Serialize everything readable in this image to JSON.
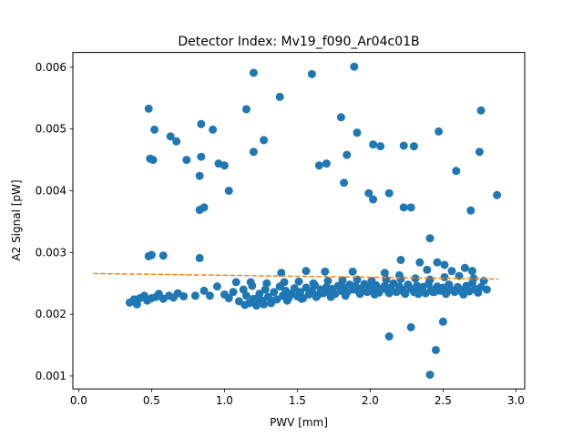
{
  "chart_data": {
    "type": "scatter",
    "title": "Detector Index: Mv19_f090_Ar04c01B",
    "xlabel": "PWV [mm]",
    "ylabel": "A2 Signal [pW]",
    "xlim": [
      -0.04,
      3.06
    ],
    "ylim": [
      0.00079,
      0.00624
    ],
    "xticks": [
      0.0,
      0.5,
      1.0,
      1.5,
      2.0,
      2.5,
      3.0
    ],
    "xtick_labels": [
      "0.0",
      "0.5",
      "1.0",
      "1.5",
      "2.0",
      "2.5",
      "3.0"
    ],
    "yticks": [
      0.001,
      0.002,
      0.003,
      0.004,
      0.005,
      0.006
    ],
    "ytick_labels": [
      "0.001",
      "0.002",
      "0.003",
      "0.004",
      "0.005",
      "0.006"
    ],
    "grid": false,
    "colors": {
      "points": "#1f77b4",
      "fit": "#ff7f0e"
    },
    "series": [
      {
        "name": "measurements",
        "kind": "scatter",
        "points": [
          [
            0.48,
            0.00533
          ],
          [
            1.2,
            0.00591
          ],
          [
            1.6,
            0.00589
          ],
          [
            1.89,
            0.00601
          ],
          [
            1.38,
            0.00552
          ],
          [
            0.52,
            0.00499
          ],
          [
            0.63,
            0.00488
          ],
          [
            0.67,
            0.0048
          ],
          [
            0.84,
            0.00508
          ],
          [
            0.92,
            0.00499
          ],
          [
            1.15,
            0.00532
          ],
          [
            1.27,
            0.00482
          ],
          [
            1.8,
            0.00519
          ],
          [
            1.91,
            0.00494
          ],
          [
            2.02,
            0.00475
          ],
          [
            2.07,
            0.00472
          ],
          [
            2.23,
            0.00473
          ],
          [
            2.3,
            0.00472
          ],
          [
            2.47,
            0.00496
          ],
          [
            2.76,
            0.0053
          ],
          [
            0.49,
            0.00452
          ],
          [
            0.51,
            0.0045
          ],
          [
            0.74,
            0.0045
          ],
          [
            0.84,
            0.00455
          ],
          [
            0.96,
            0.00444
          ],
          [
            1.0,
            0.00441
          ],
          [
            1.2,
            0.00463
          ],
          [
            1.65,
            0.00441
          ],
          [
            1.7,
            0.00444
          ],
          [
            1.84,
            0.00458
          ],
          [
            2.75,
            0.00463
          ],
          [
            0.83,
            0.00424
          ],
          [
            1.03,
            0.004
          ],
          [
            1.82,
            0.00413
          ],
          [
            1.99,
            0.00396
          ],
          [
            2.02,
            0.00386
          ],
          [
            2.13,
            0.00396
          ],
          [
            2.59,
            0.00432
          ],
          [
            2.87,
            0.00393
          ],
          [
            0.83,
            0.00369
          ],
          [
            0.86,
            0.00373
          ],
          [
            2.23,
            0.00373
          ],
          [
            2.28,
            0.00373
          ],
          [
            2.69,
            0.00368
          ],
          [
            0.48,
            0.00294
          ],
          [
            0.5,
            0.00296
          ],
          [
            0.58,
            0.00295
          ],
          [
            0.83,
            0.00291
          ],
          [
            2.41,
            0.00323
          ],
          [
            2.21,
            0.00288
          ],
          [
            2.34,
            0.00284
          ],
          [
            2.46,
            0.00284
          ],
          [
            2.51,
            0.0028
          ],
          [
            2.65,
            0.00275
          ],
          [
            1.39,
            0.00267
          ],
          [
            1.56,
            0.0027
          ],
          [
            1.69,
            0.00269
          ],
          [
            1.88,
            0.00269
          ],
          [
            2.1,
            0.00267
          ],
          [
            2.2,
            0.00263
          ],
          [
            2.39,
            0.00272
          ],
          [
            2.56,
            0.0027
          ],
          [
            2.7,
            0.0027
          ],
          [
            2.13,
            0.00164
          ],
          [
            2.28,
            0.00179
          ],
          [
            2.5,
            0.00188
          ],
          [
            2.45,
            0.00142
          ],
          [
            2.41,
            0.00102
          ],
          [
            0.35,
            0.00219
          ],
          [
            0.38,
            0.00224
          ],
          [
            0.4,
            0.00216
          ],
          [
            0.42,
            0.00226
          ],
          [
            0.45,
            0.0023
          ],
          [
            0.47,
            0.00222
          ],
          [
            0.5,
            0.00226
          ],
          [
            0.53,
            0.00228
          ],
          [
            0.55,
            0.00233
          ],
          [
            0.58,
            0.00225
          ],
          [
            0.62,
            0.0023
          ],
          [
            0.65,
            0.00227
          ],
          [
            0.68,
            0.00234
          ],
          [
            0.72,
            0.00229
          ],
          [
            0.8,
            0.0023
          ],
          [
            0.86,
            0.00238
          ],
          [
            0.9,
            0.0023
          ],
          [
            0.95,
            0.00245
          ],
          [
            1.0,
            0.00232
          ],
          [
            1.03,
            0.00226
          ],
          [
            1.06,
            0.00236
          ],
          [
            1.08,
            0.00252
          ],
          [
            1.1,
            0.00221
          ],
          [
            1.13,
            0.0024
          ],
          [
            1.15,
            0.0023
          ],
          [
            1.17,
            0.00218
          ],
          [
            1.19,
            0.00246
          ],
          [
            1.2,
            0.00225
          ],
          [
            1.22,
            0.00214
          ],
          [
            1.24,
            0.00233
          ],
          [
            1.26,
            0.00222
          ],
          [
            1.28,
            0.0024
          ],
          [
            1.3,
            0.00228
          ],
          [
            1.32,
            0.00218
          ],
          [
            1.34,
            0.00236
          ],
          [
            1.36,
            0.00224
          ],
          [
            1.38,
            0.00245
          ],
          [
            1.4,
            0.0023
          ],
          [
            1.42,
            0.00238
          ],
          [
            1.44,
            0.00226
          ],
          [
            1.46,
            0.00233
          ],
          [
            1.48,
            0.00242
          ],
          [
            1.5,
            0.00229
          ],
          [
            1.52,
            0.00236
          ],
          [
            1.54,
            0.00226
          ],
          [
            1.56,
            0.00243
          ],
          [
            1.58,
            0.00232
          ],
          [
            1.6,
            0.00238
          ],
          [
            1.62,
            0.00247
          ],
          [
            1.64,
            0.00231
          ],
          [
            1.66,
            0.0024
          ],
          [
            1.68,
            0.00234
          ],
          [
            1.7,
            0.00244
          ],
          [
            1.72,
            0.00236
          ],
          [
            1.74,
            0.00241
          ],
          [
            1.76,
            0.00233
          ],
          [
            1.78,
            0.00246
          ],
          [
            1.8,
            0.00238
          ],
          [
            1.82,
            0.00243
          ],
          [
            1.84,
            0.00235
          ],
          [
            1.86,
            0.00248
          ],
          [
            1.88,
            0.0024
          ],
          [
            1.9,
            0.00245
          ],
          [
            1.92,
            0.00237
          ],
          [
            1.94,
            0.00242
          ],
          [
            1.96,
            0.00249
          ],
          [
            1.98,
            0.00236
          ],
          [
            2.0,
            0.00244
          ],
          [
            2.02,
            0.00239
          ],
          [
            2.04,
            0.00247
          ],
          [
            2.06,
            0.00235
          ],
          [
            2.08,
            0.00241
          ],
          [
            2.1,
            0.00246
          ],
          [
            2.12,
            0.00238
          ],
          [
            2.14,
            0.00243
          ],
          [
            2.16,
            0.0025
          ],
          [
            2.18,
            0.00236
          ],
          [
            2.2,
            0.00245
          ],
          [
            2.22,
            0.0024
          ],
          [
            2.24,
            0.00233
          ],
          [
            2.26,
            0.00248
          ],
          [
            2.28,
            0.00241
          ],
          [
            2.3,
            0.00236
          ],
          [
            2.32,
            0.00246
          ],
          [
            2.34,
            0.00239
          ],
          [
            2.36,
            0.00244
          ],
          [
            2.38,
            0.00234
          ],
          [
            2.4,
            0.00249
          ],
          [
            2.42,
            0.0024
          ],
          [
            2.44,
            0.00236
          ],
          [
            2.46,
            0.00245
          ],
          [
            2.48,
            0.00238
          ],
          [
            2.5,
            0.00243
          ],
          [
            2.52,
            0.00233
          ],
          [
            2.54,
            0.00248
          ],
          [
            2.56,
            0.00239
          ],
          [
            2.58,
            0.00236
          ],
          [
            2.6,
            0.00244
          ],
          [
            2.62,
            0.0024
          ],
          [
            2.64,
            0.00232
          ],
          [
            2.66,
            0.00246
          ],
          [
            2.68,
            0.00237
          ],
          [
            2.7,
            0.0025
          ],
          [
            2.72,
            0.00241
          ],
          [
            2.74,
            0.00235
          ],
          [
            2.76,
            0.00244
          ],
          [
            2.78,
            0.00254
          ],
          [
            2.8,
            0.0024
          ],
          [
            1.14,
            0.00215
          ],
          [
            1.22,
            0.00222
          ],
          [
            1.27,
            0.00216
          ],
          [
            1.33,
            0.00222
          ],
          [
            1.43,
            0.00222
          ],
          [
            1.53,
            0.00225
          ],
          [
            1.63,
            0.00228
          ],
          [
            1.73,
            0.00228
          ],
          [
            1.83,
            0.0023
          ],
          [
            1.93,
            0.00233
          ],
          [
            2.03,
            0.00232
          ],
          [
            2.13,
            0.00234
          ],
          [
            2.23,
            0.00236
          ],
          [
            2.33,
            0.00233
          ],
          [
            2.43,
            0.00236
          ],
          [
            2.53,
            0.00238
          ],
          [
            2.63,
            0.00236
          ],
          [
            2.73,
            0.00238
          ],
          [
            1.18,
            0.00252
          ],
          [
            1.29,
            0.0025
          ],
          [
            1.41,
            0.00252
          ],
          [
            1.51,
            0.00253
          ],
          [
            1.61,
            0.0025
          ],
          [
            1.71,
            0.00254
          ],
          [
            1.81,
            0.00255
          ],
          [
            1.91,
            0.00256
          ],
          [
            2.01,
            0.00254
          ],
          [
            2.11,
            0.00256
          ],
          [
            2.21,
            0.00257
          ],
          [
            2.31,
            0.00258
          ],
          [
            2.41,
            0.00256
          ],
          [
            2.51,
            0.0026
          ],
          [
            2.61,
            0.00262
          ],
          [
            2.71,
            0.00258
          ]
        ]
      },
      {
        "name": "fit",
        "kind": "line",
        "style": "dashed",
        "x": [
          0.1,
          2.88
        ],
        "y": [
          0.00266,
          0.00257
        ]
      }
    ]
  }
}
